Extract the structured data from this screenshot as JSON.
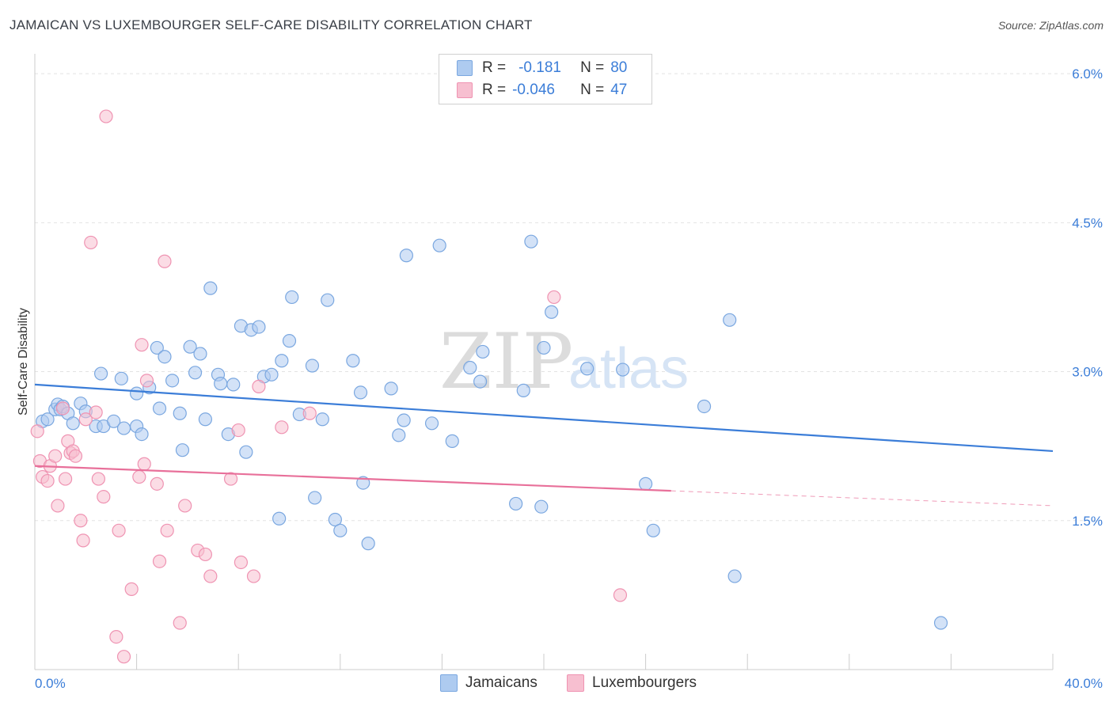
{
  "title": "JAMAICAN VS LUXEMBOURGER SELF-CARE DISABILITY CORRELATION CHART",
  "source": "Source: ZipAtlas.com",
  "watermark": {
    "zip": "ZIP",
    "atlas": "atlas"
  },
  "legend": {
    "rows": [
      {
        "r_label": "R =",
        "r_value": "-0.181",
        "n_label": "N =",
        "n_value": "80"
      },
      {
        "r_label": "R =",
        "r_value": "-0.046",
        "n_label": "N =",
        "n_value": "47"
      }
    ]
  },
  "bottom_legend": {
    "jamaicans": "Jamaicans",
    "luxembourgers": "Luxembourgers"
  },
  "colors": {
    "jamaicans_fill": "#aecbf0",
    "jamaicans_stroke": "#7aa7e0",
    "jamaicans_line": "#3b7dd8",
    "luxembourgers_fill": "#f7bfd0",
    "luxembourgers_stroke": "#ef93b2",
    "luxembourgers_line": "#e8709a",
    "axis_text": "#3b7dd8",
    "grid": "#e3e3e3"
  },
  "chart_data": {
    "type": "scatter",
    "ylabel": "Self-Care Disability",
    "xlabel": "",
    "xlim": [
      0,
      40
    ],
    "ylim": [
      0,
      6.2
    ],
    "x_tick_labels": [
      "0.0%",
      "40.0%"
    ],
    "y_ticks": [
      1.5,
      3.0,
      4.5,
      6.0
    ],
    "y_tick_labels": [
      "1.5%",
      "3.0%",
      "4.5%",
      "6.0%"
    ],
    "grid": true,
    "series": [
      {
        "name": "Jamaicans",
        "trend": {
          "x": [
            0,
            40
          ],
          "y": [
            2.87,
            2.2
          ],
          "dashed_from": null
        },
        "points": [
          [
            0.3,
            2.5
          ],
          [
            0.5,
            2.52
          ],
          [
            0.8,
            2.62
          ],
          [
            0.9,
            2.67
          ],
          [
            1.0,
            2.62
          ],
          [
            1.1,
            2.65
          ],
          [
            1.3,
            2.58
          ],
          [
            1.5,
            2.48
          ],
          [
            1.8,
            2.68
          ],
          [
            2.0,
            2.6
          ],
          [
            2.4,
            2.45
          ],
          [
            2.6,
            2.98
          ],
          [
            2.7,
            2.45
          ],
          [
            3.1,
            2.5
          ],
          [
            3.4,
            2.93
          ],
          [
            3.5,
            2.43
          ],
          [
            4.0,
            2.45
          ],
          [
            4.0,
            2.78
          ],
          [
            4.2,
            2.37
          ],
          [
            4.5,
            2.84
          ],
          [
            4.8,
            3.24
          ],
          [
            4.9,
            2.63
          ],
          [
            5.1,
            3.15
          ],
          [
            5.4,
            2.91
          ],
          [
            5.7,
            2.58
          ],
          [
            5.8,
            2.21
          ],
          [
            6.1,
            3.25
          ],
          [
            6.3,
            2.99
          ],
          [
            6.5,
            3.18
          ],
          [
            6.7,
            2.52
          ],
          [
            6.9,
            3.84
          ],
          [
            7.2,
            2.97
          ],
          [
            7.3,
            2.88
          ],
          [
            7.6,
            2.37
          ],
          [
            7.8,
            2.87
          ],
          [
            8.1,
            3.46
          ],
          [
            8.3,
            2.19
          ],
          [
            8.5,
            3.42
          ],
          [
            8.8,
            3.45
          ],
          [
            9.0,
            2.95
          ],
          [
            9.3,
            2.97
          ],
          [
            9.6,
            1.52
          ],
          [
            9.7,
            3.11
          ],
          [
            10.0,
            3.31
          ],
          [
            10.1,
            3.75
          ],
          [
            10.4,
            2.57
          ],
          [
            10.9,
            3.06
          ],
          [
            11.0,
            1.73
          ],
          [
            11.3,
            2.52
          ],
          [
            11.5,
            3.72
          ],
          [
            11.8,
            1.51
          ],
          [
            12.0,
            1.4
          ],
          [
            12.5,
            3.11
          ],
          [
            12.8,
            2.79
          ],
          [
            12.9,
            1.88
          ],
          [
            13.1,
            1.27
          ],
          [
            14.0,
            2.83
          ],
          [
            14.3,
            2.36
          ],
          [
            14.5,
            2.51
          ],
          [
            14.6,
            4.17
          ],
          [
            15.6,
            2.48
          ],
          [
            15.9,
            4.27
          ],
          [
            16.4,
            2.3
          ],
          [
            17.1,
            3.04
          ],
          [
            17.5,
            2.9
          ],
          [
            17.6,
            3.2
          ],
          [
            18.9,
            1.67
          ],
          [
            19.2,
            2.81
          ],
          [
            19.5,
            4.31
          ],
          [
            19.9,
            1.64
          ],
          [
            20.0,
            3.24
          ],
          [
            20.3,
            3.6
          ],
          [
            21.7,
            3.03
          ],
          [
            23.1,
            3.02
          ],
          [
            24.0,
            1.87
          ],
          [
            24.3,
            1.4
          ],
          [
            26.3,
            2.65
          ],
          [
            27.3,
            3.52
          ],
          [
            27.5,
            0.94
          ],
          [
            35.6,
            0.47
          ]
        ]
      },
      {
        "name": "Luxembourgers",
        "trend": {
          "x": [
            0,
            40
          ],
          "y": [
            2.05,
            1.65
          ],
          "dashed_from": 25.0
        },
        "points": [
          [
            0.1,
            2.4
          ],
          [
            0.2,
            2.1
          ],
          [
            0.3,
            1.94
          ],
          [
            0.5,
            1.9
          ],
          [
            0.6,
            2.05
          ],
          [
            0.8,
            2.15
          ],
          [
            0.9,
            1.65
          ],
          [
            1.1,
            2.63
          ],
          [
            1.2,
            1.92
          ],
          [
            1.3,
            2.3
          ],
          [
            1.4,
            2.18
          ],
          [
            1.5,
            2.2
          ],
          [
            1.6,
            2.15
          ],
          [
            1.8,
            1.5
          ],
          [
            1.9,
            1.3
          ],
          [
            2.0,
            2.52
          ],
          [
            2.2,
            4.3
          ],
          [
            2.4,
            2.59
          ],
          [
            2.5,
            1.92
          ],
          [
            2.7,
            1.74
          ],
          [
            2.8,
            5.57
          ],
          [
            3.2,
            0.33
          ],
          [
            3.3,
            1.4
          ],
          [
            3.5,
            0.13
          ],
          [
            3.8,
            0.81
          ],
          [
            4.1,
            1.94
          ],
          [
            4.2,
            3.27
          ],
          [
            4.3,
            2.07
          ],
          [
            4.4,
            2.91
          ],
          [
            4.8,
            1.87
          ],
          [
            4.9,
            1.09
          ],
          [
            5.1,
            4.11
          ],
          [
            5.2,
            1.4
          ],
          [
            5.7,
            0.47
          ],
          [
            5.9,
            1.65
          ],
          [
            6.4,
            1.2
          ],
          [
            6.7,
            1.16
          ],
          [
            6.9,
            0.94
          ],
          [
            7.7,
            1.92
          ],
          [
            8.0,
            2.41
          ],
          [
            8.1,
            1.08
          ],
          [
            8.6,
            0.94
          ],
          [
            8.8,
            2.85
          ],
          [
            9.7,
            2.44
          ],
          [
            10.8,
            2.58
          ],
          [
            20.4,
            3.75
          ],
          [
            23.0,
            0.75
          ]
        ]
      }
    ]
  }
}
